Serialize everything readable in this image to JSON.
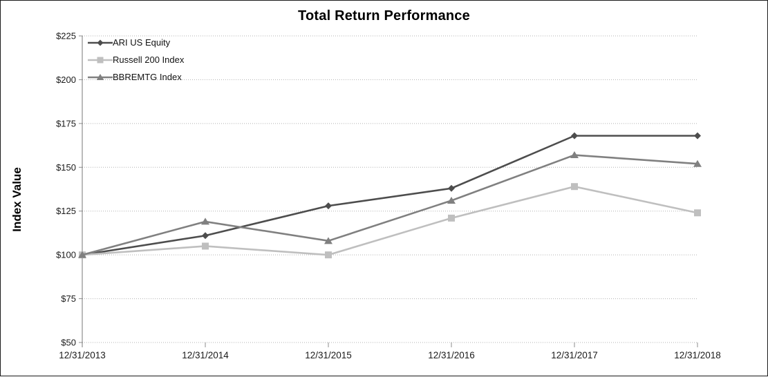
{
  "window": {
    "background": "#ffffff",
    "border_color": "#1a1a1a"
  },
  "chart_data": {
    "type": "line",
    "title": "Total Return Performance",
    "ylabel": "Index Value",
    "xlabel": "",
    "categories": [
      "12/31/2013",
      "12/31/2014",
      "12/31/2015",
      "12/31/2016",
      "12/31/2017",
      "12/31/2018"
    ],
    "series": [
      {
        "name": "ARI US Equity",
        "marker": "diamond",
        "color": "#4d4d4d",
        "values": [
          100,
          111,
          128,
          138,
          168,
          168
        ]
      },
      {
        "name": "Russell 200 Index",
        "marker": "square",
        "color": "#bfbfbf",
        "values": [
          100,
          105,
          100,
          121,
          139,
          124
        ]
      },
      {
        "name": "BBREMTG Index",
        "marker": "triangle",
        "color": "#808080",
        "values": [
          100,
          119,
          108,
          131,
          157,
          152
        ]
      }
    ],
    "ylim": [
      50,
      225
    ],
    "yticks": [
      {
        "value": 225,
        "label": "$225"
      },
      {
        "value": 200,
        "label": "$200"
      },
      {
        "value": 175,
        "label": "$175"
      },
      {
        "value": 150,
        "label": "$150"
      },
      {
        "value": 125,
        "label": "$125"
      },
      {
        "value": 100,
        "label": "$100"
      },
      {
        "value": 75,
        "label": "$75"
      },
      {
        "value": 50,
        "label": "$50"
      }
    ],
    "grid": true,
    "legend_position": "top-left-inside",
    "colors": {
      "grid": "#b0b0b0",
      "axis": "#8c8c8c",
      "tick_text": "#1a1a1a"
    }
  }
}
